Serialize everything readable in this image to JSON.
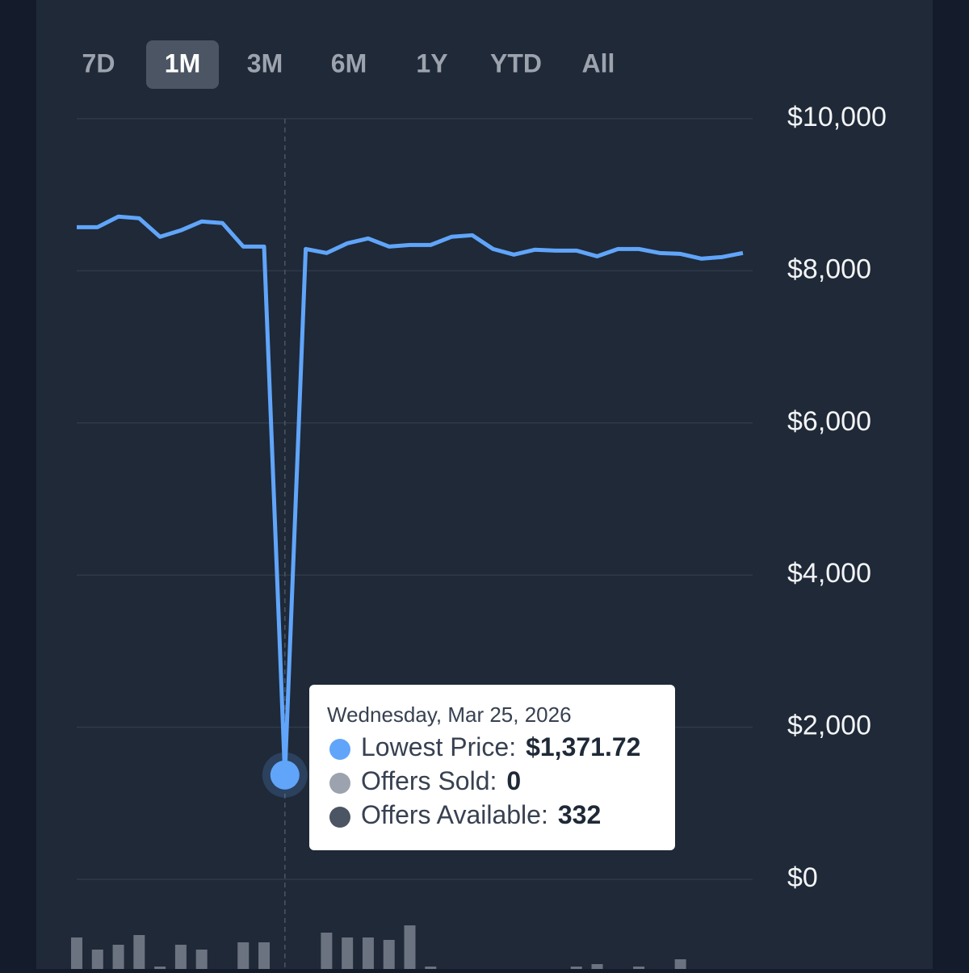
{
  "range_tabs": [
    "7D",
    "1M",
    "3M",
    "6M",
    "1Y",
    "YTD",
    "All"
  ],
  "selected_tab": "1M",
  "chart_data": {
    "type": "line",
    "ylim": [
      0,
      10000
    ],
    "yticks": [
      {
        "value": 0,
        "label": "$0"
      },
      {
        "value": 2000,
        "label": "$2,000"
      },
      {
        "value": 4000,
        "label": "$4,000"
      },
      {
        "value": 6000,
        "label": "$6,000"
      },
      {
        "value": 8000,
        "label": "$8,000"
      },
      {
        "value": 10000,
        "label": "$10,000"
      }
    ],
    "grid": true,
    "series": [
      {
        "color": "#60a5fa",
        "values": [
          8574,
          8574,
          8713,
          8691,
          8447,
          8532,
          8649,
          8628,
          8319,
          8319,
          1371.72,
          8287,
          8234,
          8362,
          8426,
          8319,
          8340,
          8340,
          8447,
          8468,
          8287,
          8213,
          8277,
          8266,
          8266,
          8191,
          8287,
          8287,
          8234,
          8223,
          8160,
          8181,
          8234
        ],
        "value_labels": [
          null,
          null,
          null,
          null,
          null,
          null,
          null,
          null,
          null,
          null,
          "$1,371.72",
          null,
          null,
          null,
          null,
          null,
          null,
          null,
          null,
          null,
          null,
          null,
          null,
          null,
          null,
          null,
          null,
          null,
          null,
          null,
          null,
          null,
          null
        ]
      },
      {
        "type": "bar",
        "color": "#6b7280",
        "values": [
          13,
          8,
          10,
          14,
          1,
          10,
          8,
          0,
          11,
          11,
          0,
          0,
          15,
          13,
          13,
          12,
          18,
          1,
          0,
          0,
          0,
          0,
          0,
          0,
          1,
          2,
          0,
          1,
          0,
          4,
          0,
          0,
          0
        ]
      }
    ],
    "tooltip": {
      "date": "Wednesday, Mar 25, 2026",
      "index": 10,
      "price_label": "Lowest Price:",
      "sold_label": "Offers Sold:",
      "available_label": "Offers Available:",
      "available": 332,
      "available_color": "#4b5563",
      "sold_color": "#9ca3af"
    }
  }
}
